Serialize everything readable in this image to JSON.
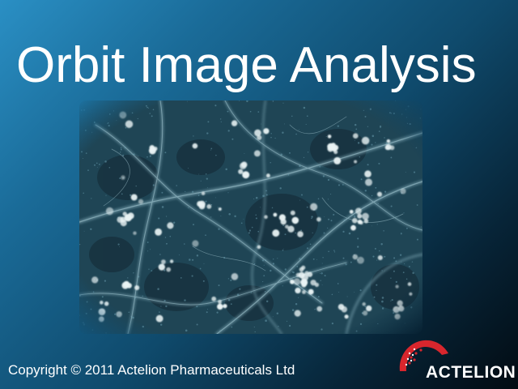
{
  "window": {
    "title": "Orbit Image Analysis"
  },
  "image": {
    "description_icon": "microscopy-cells-image"
  },
  "footer": {
    "copyright": "Copyright © 2011 Actelion Pharmaceuticals Ltd"
  },
  "logo": {
    "text": "ACTELION",
    "icon": "actelion-logo-icon",
    "color": "#d8262d"
  },
  "colors": {
    "background_light": "#2a8fc4",
    "background_dark": "#020b12",
    "text": "#ffffff"
  }
}
